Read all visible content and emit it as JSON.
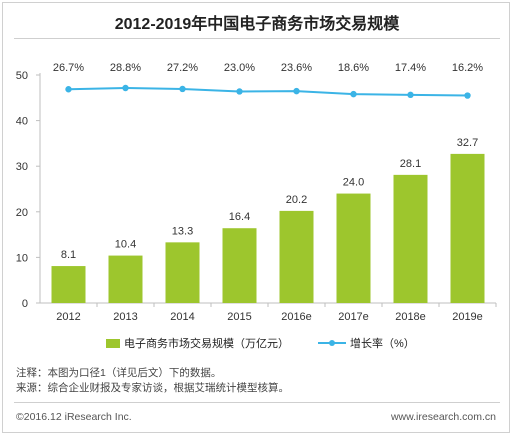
{
  "chart_data": {
    "type": "bar",
    "title": "2012-2019年中国电子商务市场交易规模",
    "categories": [
      "2012",
      "2013",
      "2014",
      "2015",
      "2016e",
      "2017e",
      "2018e",
      "2019e"
    ],
    "ylim": [
      0,
      50
    ],
    "yticks": [
      0,
      10,
      20,
      30,
      40,
      50
    ],
    "grid": false,
    "legend_position": "bottom",
    "series": [
      {
        "name": "电子商务市场交易规模（万亿元）",
        "kind": "bar",
        "color": "#9dc62d",
        "values": [
          8.1,
          10.4,
          13.3,
          16.4,
          20.2,
          24.0,
          28.1,
          32.7
        ],
        "labels": [
          "8.1",
          "10.4",
          "13.3",
          "16.4",
          "20.2",
          "24.0",
          "28.1",
          "32.7"
        ]
      },
      {
        "name": "增长率（%）",
        "kind": "line",
        "color": "#3bb4e6",
        "values": [
          26.7,
          28.8,
          27.2,
          23.0,
          23.6,
          18.6,
          17.4,
          16.2
        ],
        "labels": [
          "26.7%",
          "28.8%",
          "27.2%",
          "23.0%",
          "23.6%",
          "18.6%",
          "17.4%",
          "16.2%"
        ]
      }
    ]
  },
  "notes": {
    "line1": "注释：本图为口径1（详见后文）下的数据。",
    "line2": "来源：综合企业财报及专家访谈，根据艾瑞统计模型核算。"
  },
  "footer": {
    "copyright": "©2016.12 iResearch Inc.",
    "website": "www.iresearch.com.cn"
  }
}
